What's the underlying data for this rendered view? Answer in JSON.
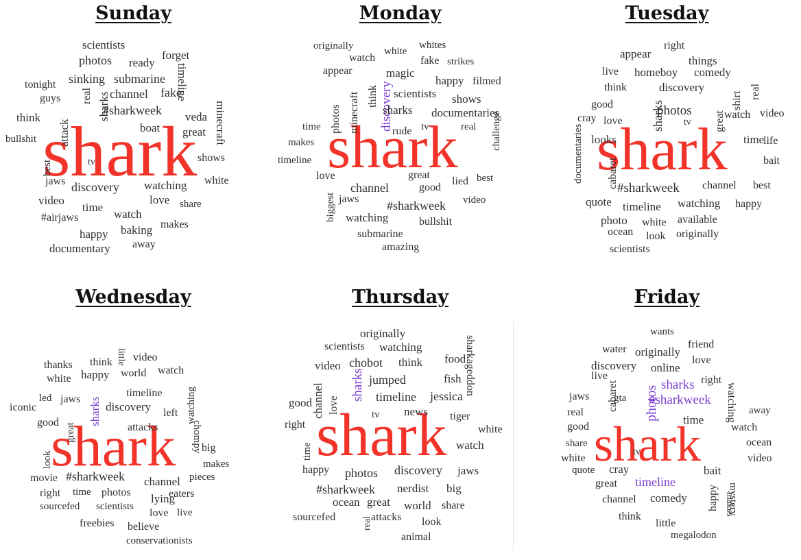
{
  "colors": {
    "primary": "#f2332a",
    "accent": "#7b3fd1",
    "text": "#2f2f2f"
  },
  "days": [
    {
      "title": "Sunday",
      "words": [
        {
          "t": "shark",
          "c": "primary",
          "big": true
        },
        {
          "t": "scientists"
        },
        {
          "t": "photos"
        },
        {
          "t": "ready"
        },
        {
          "t": "forget"
        },
        {
          "t": "sinking"
        },
        {
          "t": "submarine"
        },
        {
          "t": "timeline"
        },
        {
          "t": "tonight"
        },
        {
          "t": "guys"
        },
        {
          "t": "channel"
        },
        {
          "t": "fake"
        },
        {
          "t": "real"
        },
        {
          "t": "sharks"
        },
        {
          "t": "#sharkweek"
        },
        {
          "t": "think"
        },
        {
          "t": "attack"
        },
        {
          "t": "veda"
        },
        {
          "t": "minecraft"
        },
        {
          "t": "boat"
        },
        {
          "t": "bullshit"
        },
        {
          "t": "great"
        },
        {
          "t": "best"
        },
        {
          "t": "tv"
        },
        {
          "t": "shows"
        },
        {
          "t": "jaws"
        },
        {
          "t": "discovery"
        },
        {
          "t": "watching"
        },
        {
          "t": "white"
        },
        {
          "t": "video"
        },
        {
          "t": "time"
        },
        {
          "t": "love"
        },
        {
          "t": "share"
        },
        {
          "t": "#airjaws"
        },
        {
          "t": "watch"
        },
        {
          "t": "makes"
        },
        {
          "t": "happy"
        },
        {
          "t": "baking"
        },
        {
          "t": "away"
        },
        {
          "t": "documentary"
        }
      ]
    },
    {
      "title": "Monday",
      "words": [
        {
          "t": "shark",
          "c": "primary",
          "big": true
        },
        {
          "t": "originally"
        },
        {
          "t": "white"
        },
        {
          "t": "whites"
        },
        {
          "t": "watch"
        },
        {
          "t": "fake"
        },
        {
          "t": "strikes"
        },
        {
          "t": "appear"
        },
        {
          "t": "magic"
        },
        {
          "t": "discovery",
          "c": "accent"
        },
        {
          "t": "happy"
        },
        {
          "t": "filmed"
        },
        {
          "t": "think"
        },
        {
          "t": "minecraft"
        },
        {
          "t": "photos"
        },
        {
          "t": "scientists"
        },
        {
          "t": "shows"
        },
        {
          "t": "sharks"
        },
        {
          "t": "documentaries"
        },
        {
          "t": "time"
        },
        {
          "t": "rude"
        },
        {
          "t": "tv"
        },
        {
          "t": "real"
        },
        {
          "t": "challenge"
        },
        {
          "t": "makes"
        },
        {
          "t": "timeline"
        },
        {
          "t": "great"
        },
        {
          "t": "best"
        },
        {
          "t": "love"
        },
        {
          "t": "lied"
        },
        {
          "t": "channel"
        },
        {
          "t": "good"
        },
        {
          "t": "biggest"
        },
        {
          "t": "jaws"
        },
        {
          "t": "#sharkweek"
        },
        {
          "t": "video"
        },
        {
          "t": "watching"
        },
        {
          "t": "bullshit"
        },
        {
          "t": "submarine"
        },
        {
          "t": "amazing"
        }
      ]
    },
    {
      "title": "Tuesday",
      "words": [
        {
          "t": "shark",
          "c": "primary",
          "big": true
        },
        {
          "t": "right"
        },
        {
          "t": "appear"
        },
        {
          "t": "things"
        },
        {
          "t": "live"
        },
        {
          "t": "homeboy"
        },
        {
          "t": "comedy"
        },
        {
          "t": "think"
        },
        {
          "t": "discovery"
        },
        {
          "t": "real"
        },
        {
          "t": "shirt"
        },
        {
          "t": "good"
        },
        {
          "t": "sharks"
        },
        {
          "t": "photos"
        },
        {
          "t": "great"
        },
        {
          "t": "watch"
        },
        {
          "t": "video"
        },
        {
          "t": "documentaries"
        },
        {
          "t": "cray"
        },
        {
          "t": "love"
        },
        {
          "t": "tv"
        },
        {
          "t": "looks"
        },
        {
          "t": "time"
        },
        {
          "t": "life"
        },
        {
          "t": "cabaret"
        },
        {
          "t": "bait"
        },
        {
          "t": "#sharkweek"
        },
        {
          "t": "channel"
        },
        {
          "t": "best"
        },
        {
          "t": "quote"
        },
        {
          "t": "timeline"
        },
        {
          "t": "watching"
        },
        {
          "t": "happy"
        },
        {
          "t": "photo"
        },
        {
          "t": "white"
        },
        {
          "t": "available"
        },
        {
          "t": "ocean"
        },
        {
          "t": "look"
        },
        {
          "t": "originally"
        },
        {
          "t": "scientists"
        }
      ]
    },
    {
      "title": "Wednesday",
      "words": [
        {
          "t": "shark",
          "c": "primary",
          "big": true
        },
        {
          "t": "little"
        },
        {
          "t": "thanks"
        },
        {
          "t": "think"
        },
        {
          "t": "video"
        },
        {
          "t": "white"
        },
        {
          "t": "happy"
        },
        {
          "t": "world"
        },
        {
          "t": "watch"
        },
        {
          "t": "sharks",
          "c": "accent"
        },
        {
          "t": "led"
        },
        {
          "t": "jaws"
        },
        {
          "t": "timeline"
        },
        {
          "t": "iconic"
        },
        {
          "t": "discovery"
        },
        {
          "t": "watching"
        },
        {
          "t": "chompy"
        },
        {
          "t": "good"
        },
        {
          "t": "great"
        },
        {
          "t": "left"
        },
        {
          "t": "attacks"
        },
        {
          "t": "look"
        },
        {
          "t": "big"
        },
        {
          "t": "makes"
        },
        {
          "t": "movie"
        },
        {
          "t": "#sharkweek"
        },
        {
          "t": "channel"
        },
        {
          "t": "pieces"
        },
        {
          "t": "right"
        },
        {
          "t": "time"
        },
        {
          "t": "photos"
        },
        {
          "t": "eaters"
        },
        {
          "t": "lying"
        },
        {
          "t": "sourcefed"
        },
        {
          "t": "scientists"
        },
        {
          "t": "love"
        },
        {
          "t": "live"
        },
        {
          "t": "freebies"
        },
        {
          "t": "believe"
        },
        {
          "t": "conservationists"
        }
      ]
    },
    {
      "title": "Thursday",
      "words": [
        {
          "t": "shark",
          "c": "primary",
          "big": true
        },
        {
          "t": "originally"
        },
        {
          "t": "scientists"
        },
        {
          "t": "watching"
        },
        {
          "t": "sharkageddon"
        },
        {
          "t": "video"
        },
        {
          "t": "chobot"
        },
        {
          "t": "think"
        },
        {
          "t": "food"
        },
        {
          "t": "jumped"
        },
        {
          "t": "fish"
        },
        {
          "t": "sharks",
          "c": "accent"
        },
        {
          "t": "love"
        },
        {
          "t": "channel"
        },
        {
          "t": "good"
        },
        {
          "t": "timeline"
        },
        {
          "t": "jessica"
        },
        {
          "t": "tv"
        },
        {
          "t": "news"
        },
        {
          "t": "tiger"
        },
        {
          "t": "right"
        },
        {
          "t": "white"
        },
        {
          "t": "time"
        },
        {
          "t": "watch"
        },
        {
          "t": "happy"
        },
        {
          "t": "photos"
        },
        {
          "t": "discovery"
        },
        {
          "t": "jaws"
        },
        {
          "t": "#sharkweek"
        },
        {
          "t": "nerdist"
        },
        {
          "t": "big"
        },
        {
          "t": "ocean"
        },
        {
          "t": "great"
        },
        {
          "t": "world"
        },
        {
          "t": "share"
        },
        {
          "t": "sourcefed"
        },
        {
          "t": "real"
        },
        {
          "t": "attacks"
        },
        {
          "t": "look"
        },
        {
          "t": "animal"
        }
      ]
    },
    {
      "title": "Friday",
      "words": [
        {
          "t": "shark",
          "c": "primary",
          "big": true
        },
        {
          "t": "wants"
        },
        {
          "t": "friend"
        },
        {
          "t": "water"
        },
        {
          "t": "originally"
        },
        {
          "t": "love"
        },
        {
          "t": "discovery"
        },
        {
          "t": "online"
        },
        {
          "t": "watching"
        },
        {
          "t": "live"
        },
        {
          "t": "sharks",
          "c": "accent"
        },
        {
          "t": "right"
        },
        {
          "t": "jaws"
        },
        {
          "t": "cabaret"
        },
        {
          "t": "gta"
        },
        {
          "t": "photos",
          "c": "accent"
        },
        {
          "t": "#sharkweek",
          "c": "accent"
        },
        {
          "t": "real"
        },
        {
          "t": "away"
        },
        {
          "t": "good"
        },
        {
          "t": "time"
        },
        {
          "t": "share"
        },
        {
          "t": "watch"
        },
        {
          "t": "ocean"
        },
        {
          "t": "white"
        },
        {
          "t": "tv"
        },
        {
          "t": "video"
        },
        {
          "t": "quote"
        },
        {
          "t": "cray"
        },
        {
          "t": "bait"
        },
        {
          "t": "great"
        },
        {
          "t": "timeline",
          "c": "accent"
        },
        {
          "t": "makes"
        },
        {
          "t": "channel"
        },
        {
          "t": "comedy"
        },
        {
          "t": "mystery"
        },
        {
          "t": "happy"
        },
        {
          "t": "think"
        },
        {
          "t": "little"
        },
        {
          "t": "megalodon"
        }
      ]
    }
  ]
}
